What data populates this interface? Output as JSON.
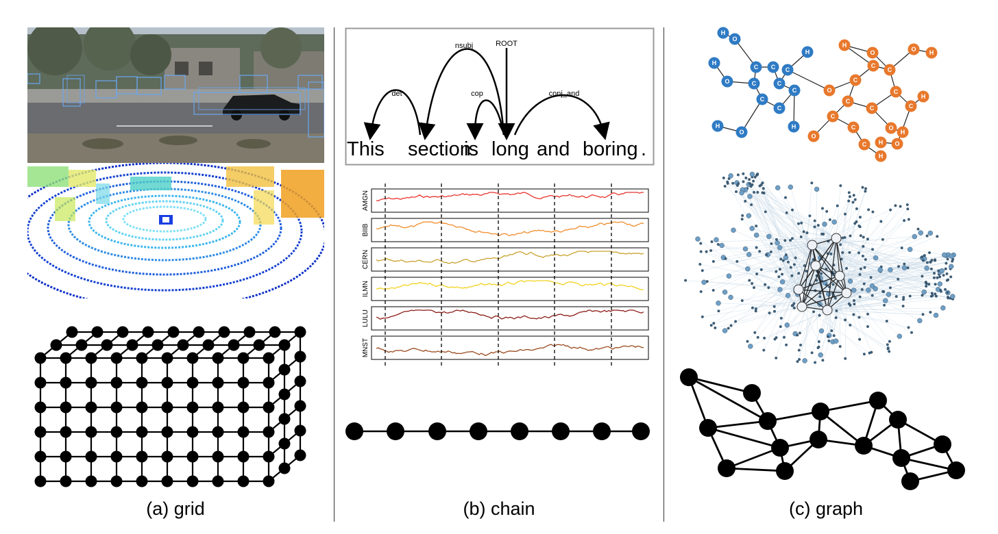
{
  "captions": {
    "grid": "(a) grid",
    "chain": "(b) chain",
    "graph": "(c) graph"
  },
  "dependency": {
    "words": [
      "This",
      "section",
      "is",
      "long",
      "and",
      "boring",
      "."
    ],
    "labels": {
      "det": "det",
      "nsubj": "nsubj",
      "cop": "cop",
      "root": "ROOT",
      "conj": "conj_and"
    }
  },
  "timeseries": {
    "tickers": [
      "AMGN",
      "BIIB",
      "CERN",
      "ILMN",
      "LULU",
      "MNST"
    ],
    "colors": [
      "#e8322c",
      "#f08c2a",
      "#c9a22e",
      "#f2d21e",
      "#8b1a14",
      "#9a4a1e"
    ]
  },
  "molecule": {
    "carbon_label": "C",
    "oxygen_label": "O",
    "hydrogen_label": "H",
    "colors": {
      "blue": "#2f7bc4",
      "orange": "#e8782c"
    }
  },
  "colors": {
    "node": "#000000",
    "box": "#6aa8f0",
    "network": "#5d8fb5"
  }
}
